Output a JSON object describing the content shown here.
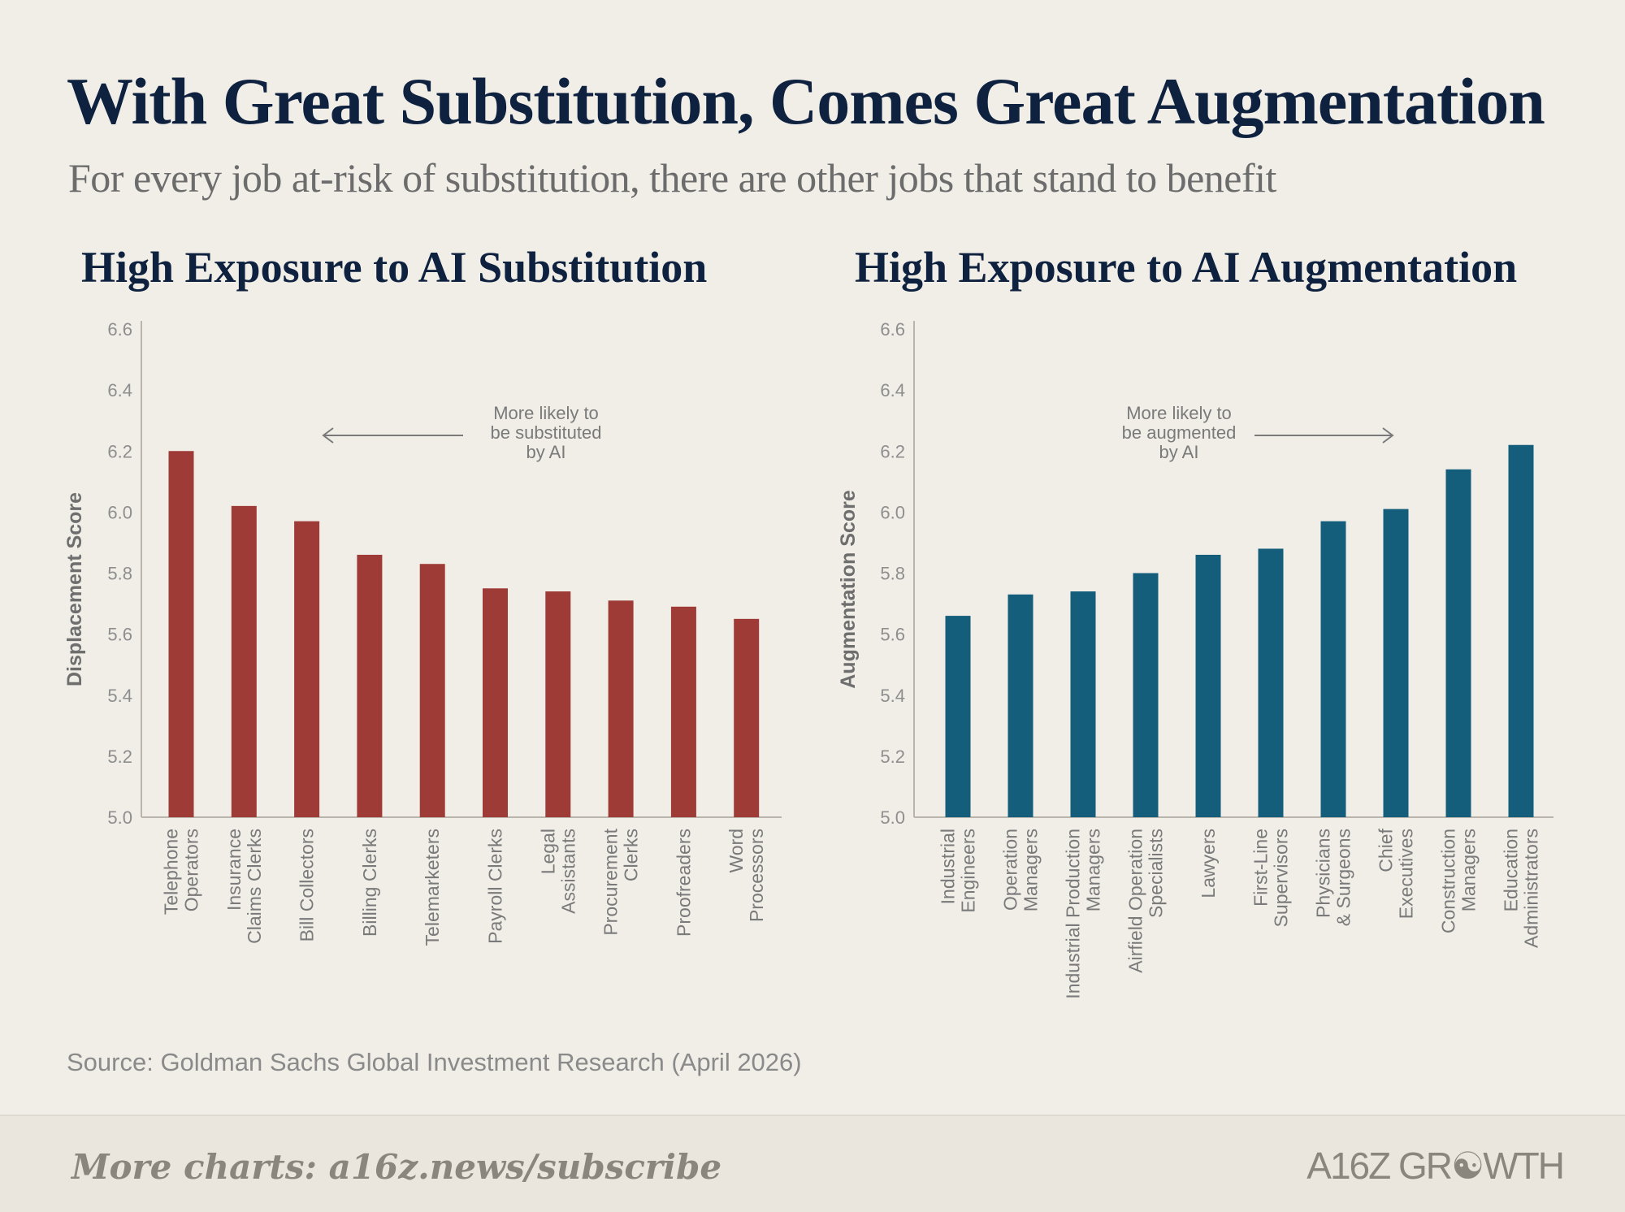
{
  "title": "With Great Substitution, Comes Great Augmentation",
  "subtitle": "For every job at-risk of substitution, there are other jobs that stand to benefit",
  "source": "Source: Goldman Sachs Global Investment Research (April 2026)",
  "footer": {
    "link": "More charts: a16z.news/subscribe",
    "logo": "A16Z GROWTH"
  },
  "colors": {
    "substitution": "#9E3B36",
    "augmentation": "#145E7C",
    "title": "#0E2240"
  },
  "chart_data": [
    {
      "type": "bar",
      "title": "High Exposure to AI Substitution",
      "ylabel": "Displacement Score",
      "xlabel": "",
      "ylim": [
        5.0,
        6.6
      ],
      "yticks": [
        "6.6",
        "6.4",
        "6.2",
        "6.0",
        "5.8",
        "5.6",
        "5.4",
        "5.2",
        "5.0"
      ],
      "grid": false,
      "annotation": {
        "lines": [
          "More likely to",
          "be substituted",
          "by AI"
        ],
        "arrow": "left"
      },
      "categories": [
        [
          "Telephone",
          "Operators"
        ],
        [
          "Insurance",
          "Claims Clerks"
        ],
        [
          "Bill Collectors"
        ],
        [
          "Billing Clerks"
        ],
        [
          "Telemarketers"
        ],
        [
          "Payroll Clerks"
        ],
        [
          "Legal",
          "Assistants"
        ],
        [
          "Procurement",
          "Clerks"
        ],
        [
          "Proofreaders"
        ],
        [
          "Word",
          "Processors"
        ]
      ],
      "values": [
        6.2,
        6.02,
        5.97,
        5.86,
        5.83,
        5.75,
        5.74,
        5.71,
        5.69,
        5.65
      ]
    },
    {
      "type": "bar",
      "title": "High Exposure to AI Augmentation",
      "ylabel": "Augmentation Score",
      "xlabel": "",
      "ylim": [
        5.0,
        6.6
      ],
      "yticks": [
        "6.6",
        "6.4",
        "6.2",
        "6.0",
        "5.8",
        "5.6",
        "5.4",
        "5.2",
        "5.0"
      ],
      "grid": false,
      "annotation": {
        "lines": [
          "More likely to",
          "be augmented",
          "by AI"
        ],
        "arrow": "right"
      },
      "categories": [
        [
          "Industrial",
          "Engineers"
        ],
        [
          "Operation",
          "Managers"
        ],
        [
          "Industrial Production",
          "Managers"
        ],
        [
          "Airfield Operation",
          "Specialists"
        ],
        [
          "Lawyers"
        ],
        [
          "First-Line",
          "Supervisors"
        ],
        [
          "Physicians",
          "& Surgeons"
        ],
        [
          "Chief",
          "Executives"
        ],
        [
          "Construction",
          "Managers"
        ],
        [
          "Education",
          "Administrators"
        ]
      ],
      "values": [
        5.66,
        5.73,
        5.74,
        5.8,
        5.86,
        5.88,
        5.97,
        6.01,
        6.14,
        6.22
      ]
    }
  ]
}
